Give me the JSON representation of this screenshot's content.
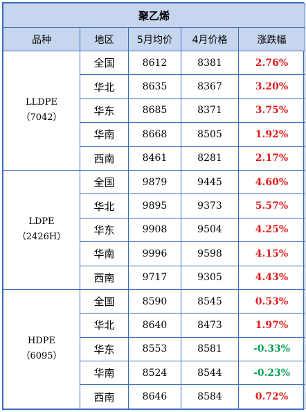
{
  "title": "聚乙烯",
  "headers": [
    "品种",
    "地区",
    "5月均价",
    "4月价格",
    "涨跌幅"
  ],
  "groups": [
    {
      "name": "LLDPE",
      "grade": "（7042）",
      "rows": [
        {
          "region": "全国",
          "may": "8612",
          "apr": "8381",
          "change": "2.76%",
          "dir": "up"
        },
        {
          "region": "华北",
          "may": "8635",
          "apr": "8367",
          "change": "3.20%",
          "dir": "up"
        },
        {
          "region": "华东",
          "may": "8685",
          "apr": "8371",
          "change": "3.75%",
          "dir": "up"
        },
        {
          "region": "华南",
          "may": "8668",
          "apr": "8505",
          "change": "1.92%",
          "dir": "up"
        },
        {
          "region": "西南",
          "may": "8461",
          "apr": "8281",
          "change": "2.17%",
          "dir": "up"
        }
      ]
    },
    {
      "name": "LDPE",
      "grade": "（2426H）",
      "rows": [
        {
          "region": "全国",
          "may": "9879",
          "apr": "9445",
          "change": "4.60%",
          "dir": "up"
        },
        {
          "region": "华北",
          "may": "9895",
          "apr": "9373",
          "change": "5.57%",
          "dir": "up"
        },
        {
          "region": "华东",
          "may": "9908",
          "apr": "9504",
          "change": "4.25%",
          "dir": "up"
        },
        {
          "region": "华南",
          "may": "9996",
          "apr": "9598",
          "change": "4.15%",
          "dir": "up"
        },
        {
          "region": "西南",
          "may": "9717",
          "apr": "9305",
          "change": "4.43%",
          "dir": "up"
        }
      ]
    },
    {
      "name": "HDPE",
      "grade": "（6095）",
      "rows": [
        {
          "region": "全国",
          "may": "8590",
          "apr": "8545",
          "change": "0.53%",
          "dir": "up"
        },
        {
          "region": "华北",
          "may": "8640",
          "apr": "8473",
          "change": "1.97%",
          "dir": "up"
        },
        {
          "region": "华东",
          "may": "8553",
          "apr": "8581",
          "change": "-0.33%",
          "dir": "down"
        },
        {
          "region": "华南",
          "may": "8524",
          "apr": "8544",
          "change": "-0.23%",
          "dir": "down"
        },
        {
          "region": "西南",
          "may": "8646",
          "apr": "8584",
          "change": "0.72%",
          "dir": "up"
        }
      ]
    }
  ],
  "colors": {
    "up": "#e0191a",
    "down": "#00a050",
    "header_bg": "#c6d6ee",
    "border": "#3a6cb8"
  }
}
